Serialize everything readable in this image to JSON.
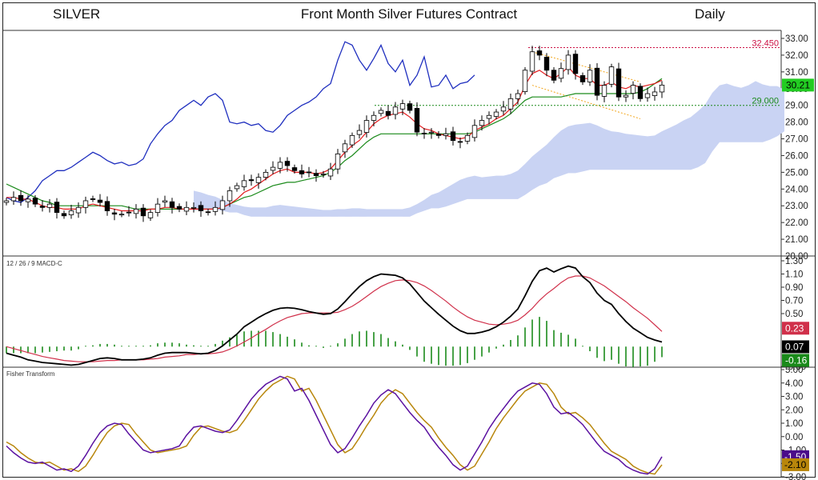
{
  "header": {
    "symbol": "SILVER",
    "title": "Front Month Silver Futures Contract",
    "period": "Daily"
  },
  "colors": {
    "candle_up": "#ffffff",
    "candle_down": "#000000",
    "tenkan": "#e31a1c",
    "kijun": "#1a8a1a",
    "chikou": "#1f2fbf",
    "cloud_bull": "#c9d3f3",
    "cloud_bear": "#f7c9c9",
    "resistance": "#cc1144",
    "support": "#1a8a1a",
    "channel": "#f2a51a",
    "macd": "#000000",
    "signal": "#d0304a",
    "histogram": "#1a8a1a",
    "fisher": "#5a10a0",
    "fisher_trigger": "#b8860b"
  },
  "chart_data": [
    {
      "type": "candlestick",
      "title": "Front Month Silver Futures Contract",
      "ylim": [
        20.0,
        33.0
      ],
      "y_ticks": [
        "33.00",
        "32.00",
        "31.00",
        "30.00",
        "29.00",
        "28.00",
        "27.00",
        "26.00",
        "25.00",
        "24.00",
        "23.00",
        "22.00",
        "21.00",
        "20.00"
      ],
      "levels": [
        {
          "label": "32.450",
          "value": 32.45,
          "color": "#cc1144"
        },
        {
          "label": "29.000",
          "value": 29.0,
          "color": "#1a8a1a"
        }
      ],
      "last_price": {
        "label": "30.21",
        "value": 30.21
      },
      "close": [
        23.3,
        23.5,
        23.3,
        23.4,
        23.1,
        22.9,
        23.1,
        22.6,
        22.4,
        22.7,
        22.9,
        23.3,
        23.4,
        23.2,
        22.7,
        22.5,
        22.5,
        22.6,
        22.8,
        22.4,
        22.6,
        23.1,
        23.3,
        22.9,
        22.8,
        22.9,
        22.9,
        22.7,
        22.6,
        22.9,
        23.3,
        23.9,
        24.2,
        24.5,
        24.5,
        24.7,
        25.0,
        25.3,
        25.6,
        25.4,
        25.1,
        24.9,
        25.0,
        24.8,
        24.9,
        25.2,
        26.1,
        26.7,
        27.2,
        27.5,
        28.1,
        28.4,
        28.7,
        28.4,
        28.9,
        29.1,
        28.7,
        27.4,
        27.3,
        27.4,
        27.2,
        27.3,
        26.9,
        26.8,
        27.2,
        27.8,
        28.1,
        28.4,
        28.6,
        28.9,
        29.4,
        29.7,
        31.1,
        32.2,
        32.0,
        31.1,
        30.5,
        31.2,
        32.0,
        30.9,
        30.4,
        31.1,
        29.6,
        30.2,
        31.3,
        29.5,
        29.6,
        30.2,
        29.4,
        29.7,
        29.8,
        30.21
      ],
      "tenkan": [
        23.5,
        23.5,
        23.4,
        23.4,
        23.2,
        23.0,
        22.9,
        22.9,
        22.8,
        22.8,
        22.8,
        23.0,
        23.1,
        23.0,
        22.9,
        22.8,
        22.7,
        22.7,
        22.7,
        22.7,
        22.8,
        22.8,
        22.9,
        22.9,
        22.8,
        22.8,
        22.8,
        22.8,
        22.8,
        22.8,
        22.9,
        23.1,
        23.4,
        23.8,
        24.0,
        24.3,
        24.6,
        24.9,
        25.1,
        25.2,
        25.0,
        25.0,
        25.0,
        24.9,
        25.0,
        25.2,
        25.7,
        26.2,
        26.6,
        26.9,
        27.4,
        27.9,
        28.2,
        28.4,
        28.5,
        28.6,
        28.3,
        27.9,
        27.6,
        27.5,
        27.3,
        27.2,
        27.1,
        27.0,
        27.1,
        27.5,
        27.7,
        27.9,
        28.2,
        28.4,
        28.8,
        29.2,
        30.2,
        30.9,
        31.1,
        30.8,
        30.6,
        30.9,
        31.3,
        30.8,
        30.6,
        30.6,
        30.2,
        30.2,
        30.4,
        30.1,
        30.0,
        30.2,
        30.1,
        30.2,
        30.3,
        30.5
      ],
      "kijun": [
        24.3,
        24.1,
        23.9,
        23.7,
        23.5,
        23.3,
        23.2,
        23.0,
        23.0,
        23.0,
        23.0,
        23.0,
        23.0,
        23.0,
        23.0,
        23.0,
        23.0,
        22.9,
        22.8,
        22.8,
        22.8,
        22.8,
        22.8,
        22.8,
        22.8,
        22.8,
        22.8,
        22.8,
        22.8,
        22.8,
        22.9,
        23.1,
        23.3,
        23.5,
        23.6,
        23.8,
        24.0,
        24.2,
        24.3,
        24.4,
        24.4,
        24.5,
        24.6,
        24.7,
        24.8,
        25.0,
        25.3,
        25.7,
        26.0,
        26.4,
        26.8,
        27.1,
        27.3,
        27.3,
        27.3,
        27.3,
        27.3,
        27.3,
        27.3,
        27.3,
        27.3,
        27.3,
        27.3,
        27.3,
        27.3,
        27.4,
        27.6,
        27.8,
        28.0,
        28.2,
        28.5,
        28.9,
        29.3,
        29.5,
        29.5,
        29.5,
        29.5,
        29.5,
        29.6,
        29.7,
        29.7,
        29.7,
        29.7,
        29.7,
        29.7,
        29.7,
        29.7,
        29.7,
        29.8,
        30.0,
        30.3,
        30.6
      ]
    },
    {
      "type": "bar+line",
      "title": "12 / 26 / 9 MACD-C",
      "ylim": [
        -0.3,
        1.3
      ],
      "y_ticks": [
        "1.30",
        "1.10",
        "0.90",
        "0.70",
        "0.50",
        "-0.30"
      ],
      "badges": {
        "signal": "0.23",
        "macd": "0.07",
        "histogram": "-0.16"
      },
      "macd": [
        -0.1,
        -0.13,
        -0.16,
        -0.2,
        -0.22,
        -0.24,
        -0.25,
        -0.26,
        -0.27,
        -0.28,
        -0.27,
        -0.24,
        -0.21,
        -0.18,
        -0.17,
        -0.18,
        -0.2,
        -0.2,
        -0.2,
        -0.19,
        -0.17,
        -0.13,
        -0.1,
        -0.09,
        -0.09,
        -0.09,
        -0.1,
        -0.11,
        -0.1,
        -0.06,
        0.01,
        0.1,
        0.19,
        0.3,
        0.37,
        0.44,
        0.5,
        0.55,
        0.58,
        0.59,
        0.58,
        0.56,
        0.53,
        0.51,
        0.49,
        0.5,
        0.57,
        0.68,
        0.8,
        0.91,
        1.0,
        1.06,
        1.1,
        1.09,
        1.08,
        1.04,
        0.95,
        0.82,
        0.69,
        0.59,
        0.49,
        0.4,
        0.31,
        0.24,
        0.2,
        0.2,
        0.22,
        0.25,
        0.3,
        0.37,
        0.46,
        0.57,
        0.77,
        0.99,
        1.15,
        1.19,
        1.13,
        1.18,
        1.22,
        1.19,
        1.06,
        0.97,
        0.81,
        0.7,
        0.64,
        0.5,
        0.38,
        0.28,
        0.21,
        0.14,
        0.1,
        0.07
      ],
      "signal": [
        0.0,
        -0.03,
        -0.06,
        -0.09,
        -0.12,
        -0.15,
        -0.17,
        -0.19,
        -0.21,
        -0.22,
        -0.23,
        -0.23,
        -0.23,
        -0.22,
        -0.21,
        -0.21,
        -0.2,
        -0.2,
        -0.2,
        -0.2,
        -0.19,
        -0.18,
        -0.16,
        -0.15,
        -0.14,
        -0.12,
        -0.12,
        -0.11,
        -0.11,
        -0.1,
        -0.08,
        -0.04,
        0.01,
        0.07,
        0.13,
        0.2,
        0.26,
        0.33,
        0.39,
        0.44,
        0.47,
        0.5,
        0.51,
        0.51,
        0.51,
        0.51,
        0.52,
        0.56,
        0.61,
        0.68,
        0.76,
        0.84,
        0.91,
        0.96,
        1.0,
        1.01,
        1.0,
        0.97,
        0.92,
        0.85,
        0.77,
        0.69,
        0.6,
        0.52,
        0.45,
        0.4,
        0.37,
        0.34,
        0.33,
        0.34,
        0.36,
        0.4,
        0.48,
        0.58,
        0.7,
        0.8,
        0.88,
        0.97,
        1.04,
        1.07,
        1.07,
        1.04,
        0.98,
        0.92,
        0.84,
        0.76,
        0.68,
        0.59,
        0.51,
        0.43,
        0.33,
        0.23
      ],
      "histogram": [
        -0.1,
        -0.1,
        -0.1,
        -0.1,
        -0.1,
        -0.09,
        -0.08,
        -0.07,
        -0.06,
        -0.06,
        -0.04,
        -0.01,
        0.02,
        0.04,
        0.04,
        0.03,
        0.0,
        0.0,
        0.0,
        0.01,
        0.02,
        0.05,
        0.06,
        0.06,
        0.05,
        0.03,
        0.02,
        0.0,
        0.01,
        0.04,
        0.09,
        0.14,
        0.18,
        0.23,
        0.24,
        0.24,
        0.24,
        0.22,
        0.19,
        0.15,
        0.11,
        0.06,
        0.02,
        0.0,
        -0.02,
        -0.01,
        0.05,
        0.12,
        0.19,
        0.23,
        0.24,
        0.22,
        0.19,
        0.13,
        0.08,
        0.03,
        -0.05,
        -0.15,
        -0.23,
        -0.26,
        -0.28,
        -0.29,
        -0.29,
        -0.28,
        -0.25,
        -0.2,
        -0.15,
        -0.09,
        -0.03,
        0.03,
        0.1,
        0.17,
        0.29,
        0.41,
        0.45,
        0.39,
        0.25,
        0.21,
        0.18,
        0.12,
        -0.01,
        -0.07,
        -0.17,
        -0.22,
        -0.2,
        -0.26,
        -0.3,
        -0.31,
        -0.3,
        -0.29,
        -0.23,
        -0.16
      ]
    },
    {
      "type": "line",
      "title": "Fisher Transform",
      "ylim": [
        -3.0,
        5.0
      ],
      "y_ticks": [
        "5.00",
        "4.00",
        "3.00",
        "2.00",
        "1.00",
        "0.00",
        "-1.00",
        "-2.00",
        "-3.00"
      ],
      "badges": {
        "fisher": "-1.50",
        "trigger": "-2.10"
      },
      "fisher": [
        -0.7,
        -1.2,
        -1.6,
        -1.9,
        -2.0,
        -1.9,
        -2.2,
        -2.5,
        -2.4,
        -2.6,
        -2.2,
        -1.4,
        -0.5,
        0.3,
        0.8,
        1.0,
        0.9,
        0.2,
        -0.4,
        -1.0,
        -1.2,
        -1.1,
        -1.0,
        -0.9,
        -0.7,
        0.1,
        0.7,
        0.8,
        0.6,
        0.4,
        0.3,
        0.5,
        1.2,
        2.0,
        2.8,
        3.4,
        3.9,
        4.2,
        4.5,
        4.3,
        3.4,
        3.6,
        2.7,
        1.6,
        0.5,
        -0.6,
        -1.2,
        -0.9,
        -0.1,
        0.8,
        1.6,
        2.5,
        3.1,
        3.5,
        3.2,
        2.5,
        1.8,
        1.2,
        0.7,
        -0.1,
        -0.8,
        -1.4,
        -2.1,
        -2.5,
        -2.2,
        -1.3,
        -0.4,
        0.6,
        1.4,
        2.1,
        2.8,
        3.4,
        3.7,
        4.0,
        3.9,
        3.2,
        2.2,
        1.7,
        1.8,
        1.4,
        0.9,
        0.2,
        -0.5,
        -1.1,
        -1.4,
        -1.7,
        -2.2,
        -2.5,
        -2.7,
        -2.8,
        -2.4,
        -1.5
      ],
      "trigger": [
        -0.4,
        -0.7,
        -1.2,
        -1.6,
        -1.9,
        -2.0,
        -1.9,
        -2.2,
        -2.5,
        -2.4,
        -2.6,
        -2.2,
        -1.4,
        -0.5,
        0.3,
        0.8,
        1.0,
        0.9,
        0.2,
        -0.4,
        -1.0,
        -1.2,
        -1.1,
        -1.0,
        -0.9,
        -0.7,
        0.1,
        0.7,
        0.8,
        0.6,
        0.4,
        0.3,
        0.5,
        1.2,
        2.0,
        2.8,
        3.4,
        3.9,
        4.2,
        4.5,
        4.3,
        3.4,
        3.6,
        2.7,
        1.6,
        0.5,
        -0.6,
        -1.2,
        -0.9,
        -0.1,
        0.8,
        1.6,
        2.5,
        3.1,
        3.5,
        3.2,
        2.5,
        1.8,
        1.2,
        0.7,
        -0.1,
        -0.8,
        -1.4,
        -2.1,
        -2.5,
        -2.2,
        -1.3,
        -0.4,
        0.6,
        1.4,
        2.1,
        2.8,
        3.4,
        3.7,
        4.0,
        3.9,
        3.2,
        2.2,
        1.7,
        1.8,
        1.4,
        0.9,
        0.2,
        -0.5,
        -1.1,
        -1.4,
        -1.7,
        -2.2,
        -2.5,
        -2.7,
        -2.8,
        -2.1
      ]
    }
  ]
}
